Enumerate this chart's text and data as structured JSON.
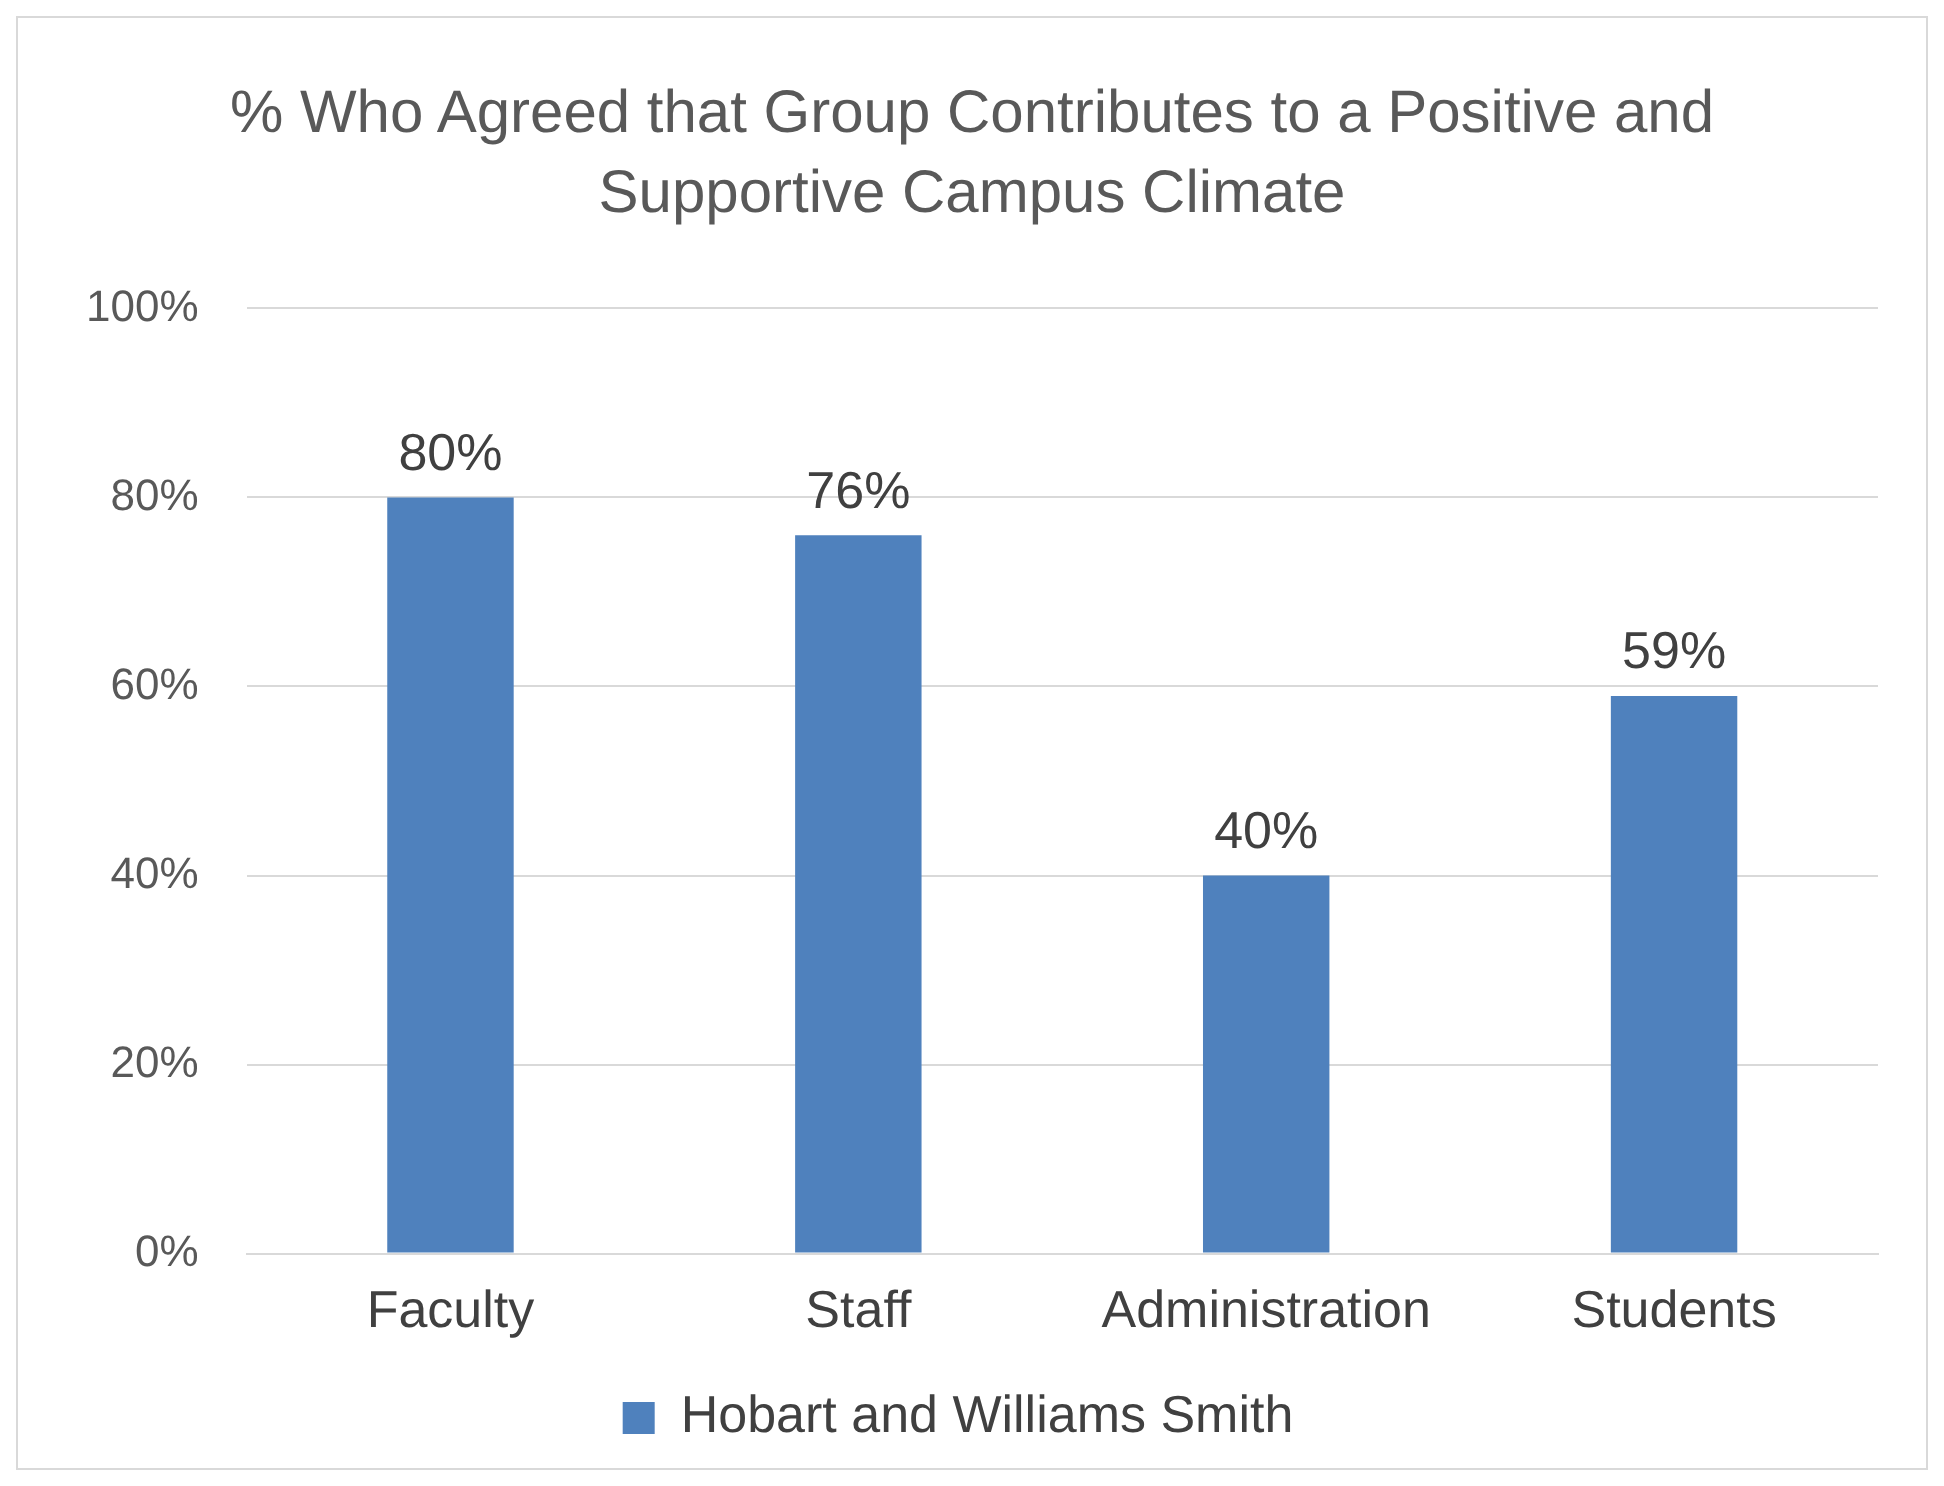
{
  "chart_data": {
    "type": "bar",
    "title": "% Who Agreed that Group Contributes to a Positive and Supportive Campus Climate",
    "categories": [
      "Faculty",
      "Staff",
      "Administration",
      "Students"
    ],
    "series": [
      {
        "name": "Hobart and Williams Smith",
        "color": "#4f81bd",
        "values": [
          80,
          76,
          40,
          59
        ],
        "value_labels": [
          "80%",
          "76%",
          "40%",
          "59%"
        ]
      }
    ],
    "ylim": [
      0,
      100
    ],
    "yticks": [
      {
        "value": 0,
        "label": "0%"
      },
      {
        "value": 20,
        "label": "20%"
      },
      {
        "value": 40,
        "label": "40%"
      },
      {
        "value": 60,
        "label": "60%"
      },
      {
        "value": 80,
        "label": "80%"
      },
      {
        "value": 100,
        "label": "100%"
      }
    ],
    "grid": "y",
    "legend": "bottom"
  }
}
